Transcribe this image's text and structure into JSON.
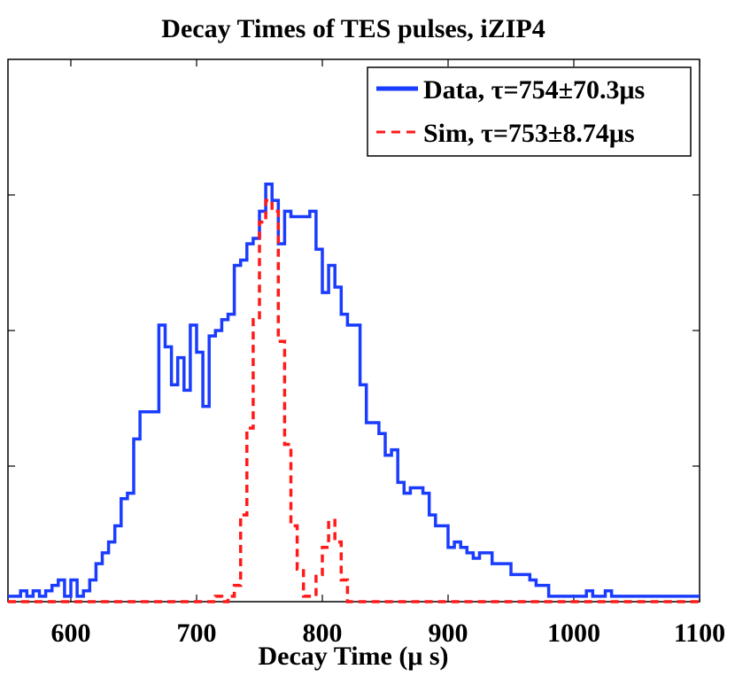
{
  "chart_data": {
    "type": "line",
    "title": "Decay Times of TES pulses, iZIP4",
    "xlabel": "Decay Time (μ s)",
    "ylabel": "",
    "xlim": [
      550,
      1100
    ],
    "ylim": [
      0,
      100
    ],
    "x_ticks": [
      "600",
      "700",
      "800",
      "900",
      "1000",
      "1100"
    ],
    "grid": false,
    "legend_position": "top-right",
    "series": [
      {
        "name": "Data, τ=754±70.3μs",
        "color": "#1a3cff",
        "style": "solid",
        "x": [
          550,
          555,
          560,
          565,
          570,
          575,
          580,
          585,
          590,
          595,
          600,
          605,
          610,
          615,
          620,
          625,
          630,
          635,
          640,
          645,
          650,
          655,
          660,
          665,
          670,
          675,
          680,
          685,
          690,
          695,
          700,
          705,
          710,
          715,
          720,
          725,
          730,
          735,
          740,
          745,
          750,
          755,
          760,
          765,
          770,
          775,
          780,
          785,
          790,
          795,
          800,
          805,
          810,
          815,
          820,
          825,
          830,
          835,
          840,
          845,
          850,
          855,
          860,
          865,
          870,
          875,
          880,
          885,
          890,
          895,
          900,
          905,
          910,
          915,
          920,
          925,
          930,
          935,
          940,
          945,
          950,
          955,
          960,
          965,
          970,
          975,
          980,
          985,
          990,
          995,
          1000,
          1005,
          1010,
          1015,
          1020,
          1025,
          1030,
          1035,
          1040,
          1045,
          1050,
          1055,
          1060,
          1065,
          1070,
          1075,
          1080,
          1085,
          1090,
          1095
        ],
        "y": [
          1,
          1,
          2,
          1,
          2,
          1,
          2,
          3,
          4,
          1,
          4,
          1,
          2,
          4,
          7,
          9,
          11,
          14,
          19,
          20,
          30,
          35,
          35,
          35,
          51,
          47,
          40,
          45,
          39,
          51,
          46,
          36,
          49,
          50,
          52,
          53,
          62,
          63,
          66,
          67,
          72,
          77,
          74,
          66,
          72,
          71,
          71,
          71,
          72,
          65,
          57,
          62,
          58,
          53,
          51,
          51,
          40,
          33,
          33,
          31,
          27,
          28,
          22,
          20,
          21,
          21,
          20,
          16,
          14,
          14,
          10,
          11,
          10,
          9,
          8,
          9,
          9,
          7,
          7,
          7,
          5,
          5,
          5,
          4,
          3,
          3,
          1,
          1,
          1,
          1,
          1,
          1,
          2,
          1,
          1,
          2,
          1,
          1,
          1,
          1,
          1,
          1,
          1,
          1,
          1,
          1,
          1,
          1,
          1,
          1
        ]
      },
      {
        "name": "Sim, τ=753±8.74μs",
        "color": "#ff1a1a",
        "style": "dashed",
        "x": [
          550,
          555,
          560,
          565,
          570,
          575,
          580,
          585,
          590,
          595,
          600,
          605,
          610,
          615,
          620,
          625,
          630,
          635,
          640,
          645,
          650,
          655,
          660,
          665,
          670,
          675,
          680,
          685,
          690,
          695,
          700,
          705,
          710,
          715,
          720,
          725,
          730,
          735,
          740,
          745,
          750,
          755,
          760,
          765,
          770,
          775,
          780,
          785,
          790,
          795,
          800,
          805,
          810,
          815,
          820,
          825,
          830,
          835,
          840,
          845,
          850,
          855,
          860,
          865,
          870,
          875,
          880,
          885,
          890,
          895,
          900,
          905,
          910,
          915,
          920,
          925,
          930,
          935,
          940,
          945,
          950,
          955,
          960,
          965,
          970,
          975,
          980,
          985,
          990,
          995,
          1000,
          1005,
          1010,
          1015,
          1020,
          1025,
          1030,
          1035,
          1040,
          1045,
          1050,
          1055,
          1060,
          1065,
          1070,
          1075,
          1080,
          1085,
          1090,
          1095
        ],
        "y": [
          0,
          0,
          0,
          0,
          0,
          0,
          0,
          0,
          0,
          0,
          0,
          0,
          0,
          0,
          0,
          0,
          0,
          0,
          0,
          0,
          0,
          0,
          0,
          0,
          0,
          0,
          0,
          0,
          0,
          0,
          0,
          0,
          0,
          1,
          0,
          1,
          3,
          16,
          32,
          52,
          70,
          74,
          72,
          48,
          29,
          14,
          6,
          1,
          1,
          5,
          10,
          15,
          11,
          4,
          0,
          0,
          0,
          0,
          0,
          0,
          0,
          0,
          0,
          0,
          0,
          0,
          0,
          0,
          0,
          0,
          0,
          0,
          0,
          0,
          0,
          0,
          0,
          0,
          0,
          0,
          0,
          0,
          0,
          0,
          0,
          0,
          0,
          0,
          0,
          0,
          0,
          0,
          0,
          0,
          0,
          0,
          0,
          0,
          0,
          0,
          0,
          0,
          0,
          0,
          0,
          0,
          0,
          0,
          0,
          0
        ]
      }
    ]
  }
}
